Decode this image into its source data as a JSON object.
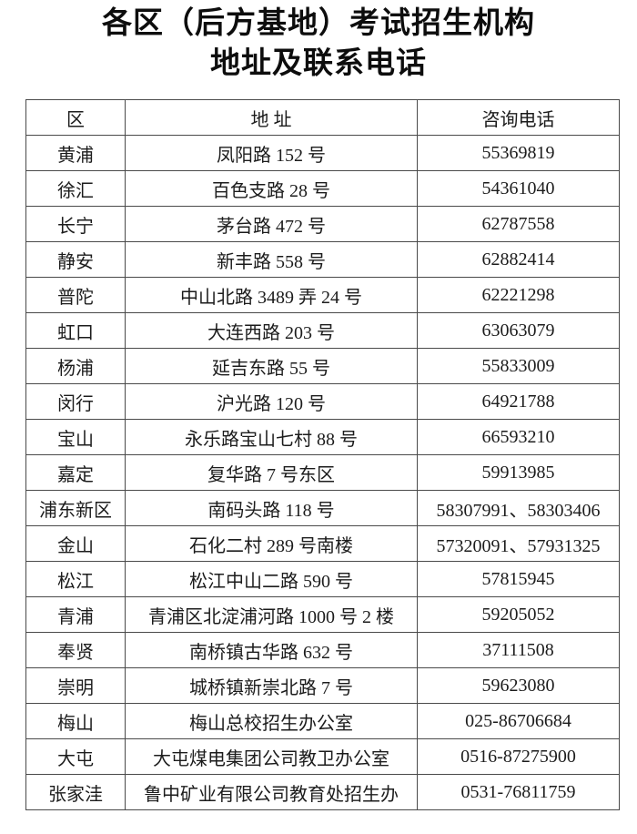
{
  "title": {
    "line1": "各区（后方基地）考试招生机构",
    "line2": "地址及联系电话"
  },
  "table": {
    "headers": {
      "district": "区",
      "address": "地 址",
      "phone": "咨询电话"
    },
    "rows": [
      {
        "district": "黄浦",
        "address": "凤阳路 152 号",
        "phone": "55369819"
      },
      {
        "district": "徐汇",
        "address": "百色支路 28 号",
        "phone": "54361040"
      },
      {
        "district": "长宁",
        "address": "茅台路 472 号",
        "phone": "62787558"
      },
      {
        "district": "静安",
        "address": "新丰路 558 号",
        "phone": "62882414"
      },
      {
        "district": "普陀",
        "address": "中山北路 3489 弄 24 号",
        "phone": "62221298"
      },
      {
        "district": "虹口",
        "address": "大连西路 203 号",
        "phone": "63063079"
      },
      {
        "district": "杨浦",
        "address": "延吉东路 55 号",
        "phone": "55833009"
      },
      {
        "district": "闵行",
        "address": "沪光路 120 号",
        "phone": "64921788"
      },
      {
        "district": "宝山",
        "address": "永乐路宝山七村 88 号",
        "phone": "66593210"
      },
      {
        "district": "嘉定",
        "address": "复华路 7 号东区",
        "phone": "59913985"
      },
      {
        "district": "浦东新区",
        "address": "南码头路 118 号",
        "phone": "58307991、58303406"
      },
      {
        "district": "金山",
        "address": "石化二村 289 号南楼",
        "phone": "57320091、57931325"
      },
      {
        "district": "松江",
        "address": "松江中山二路 590 号",
        "phone": "57815945"
      },
      {
        "district": "青浦",
        "address": "青浦区北淀浦河路 1000 号 2 楼",
        "phone": "59205052"
      },
      {
        "district": "奉贤",
        "address": "南桥镇古华路 632 号",
        "phone": "37111508"
      },
      {
        "district": "崇明",
        "address": "城桥镇新崇北路 7 号",
        "phone": "59623080"
      },
      {
        "district": "梅山",
        "address": "梅山总校招生办公室",
        "phone": "025-86706684"
      },
      {
        "district": "大屯",
        "address": "大屯煤电集团公司教卫办公室",
        "phone": "0516-87275900"
      },
      {
        "district": "张家洼",
        "address": "鲁中矿业有限公司教育处招生办",
        "phone": "0531-76811759"
      }
    ]
  },
  "colors": {
    "background": "#ffffff",
    "text": "#1c1c1c",
    "border": "#4a4a4a"
  }
}
